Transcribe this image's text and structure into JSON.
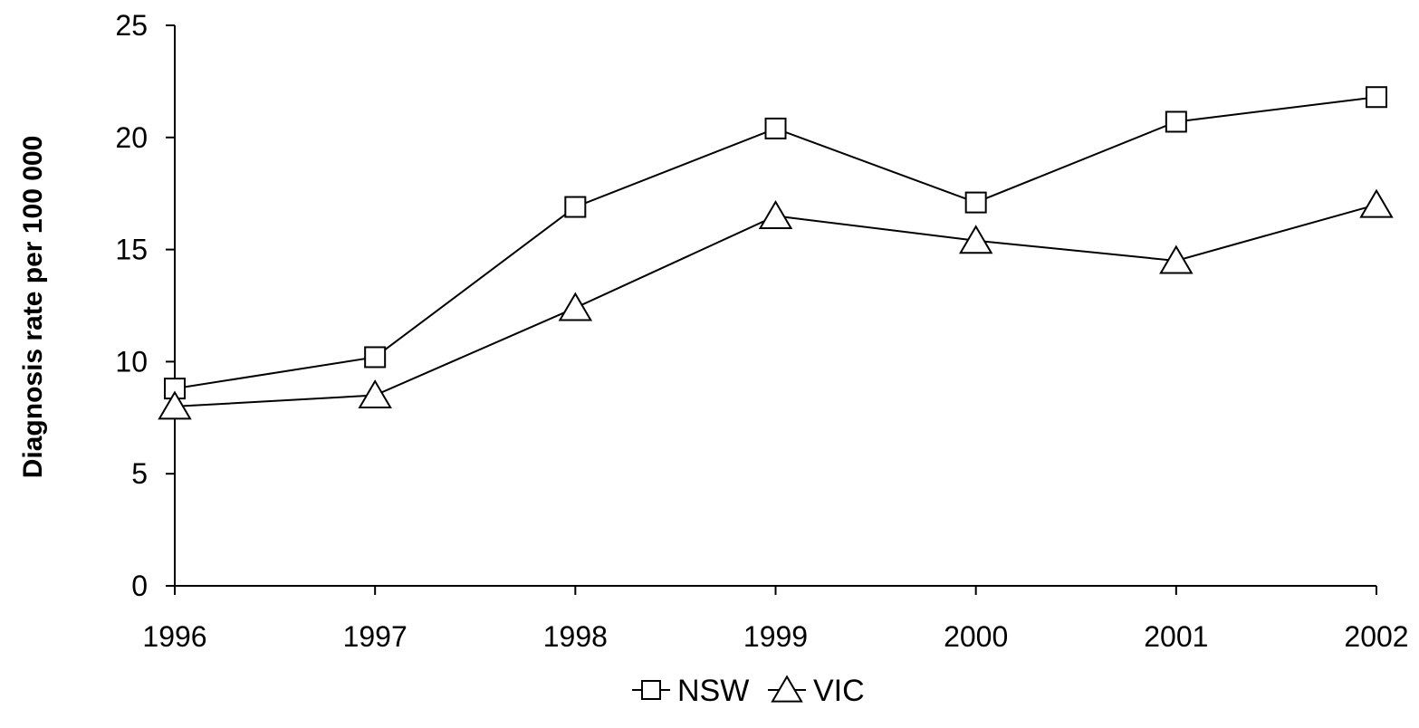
{
  "chart_data": {
    "type": "line",
    "title": "",
    "xlabel": "",
    "ylabel": "Diagnosis rate per 100 000",
    "categories": [
      "1996",
      "1997",
      "1998",
      "1999",
      "2000",
      "2001",
      "2002"
    ],
    "ylim": [
      0,
      25
    ],
    "yticks": [
      0,
      5,
      10,
      15,
      20,
      25
    ],
    "ytick_labels": [
      "0",
      "5",
      "10",
      "15",
      "20",
      "25"
    ],
    "grid": false,
    "legend_position": "bottom-center",
    "series": [
      {
        "name": "NSW",
        "marker": "square",
        "color": "#000000",
        "values": [
          8.8,
          10.2,
          16.9,
          20.4,
          17.1,
          20.7,
          21.8
        ]
      },
      {
        "name": "VIC",
        "marker": "triangle",
        "color": "#000000",
        "values": [
          8.0,
          8.5,
          12.4,
          16.5,
          15.4,
          14.5,
          17.0
        ]
      }
    ]
  }
}
